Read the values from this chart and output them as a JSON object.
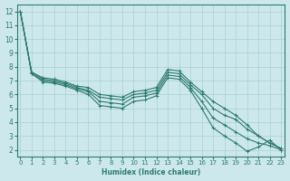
{
  "title": "",
  "xlabel": "Humidex (Indice chaleur)",
  "ylabel": "",
  "bg_color": "#cce8ed",
  "grid_color": "#b0d4d8",
  "line_color": "#2e7b6e",
  "xlim": [
    -0.3,
    23.3
  ],
  "ylim": [
    1.5,
    12.5
  ],
  "xticks": [
    0,
    1,
    2,
    3,
    4,
    5,
    6,
    7,
    8,
    9,
    10,
    11,
    12,
    13,
    14,
    15,
    16,
    17,
    18,
    19,
    20,
    21,
    22,
    23
  ],
  "yticks": [
    2,
    3,
    4,
    5,
    6,
    7,
    8,
    9,
    10,
    11,
    12
  ],
  "lines": [
    {
      "x": [
        0,
        1,
        2,
        3,
        4,
        5,
        6,
        7,
        8,
        9,
        10,
        11,
        12,
        13,
        14,
        15,
        16,
        17,
        18,
        19,
        20,
        21,
        22,
        23
      ],
      "y": [
        12.0,
        7.6,
        7.2,
        7.1,
        6.9,
        6.6,
        6.5,
        6.0,
        5.9,
        5.8,
        6.2,
        6.3,
        6.5,
        7.8,
        7.7,
        6.9,
        6.2,
        5.5,
        5.0,
        4.5,
        3.8,
        3.0,
        2.5,
        2.1
      ]
    },
    {
      "x": [
        0,
        1,
        2,
        3,
        4,
        5,
        6,
        7,
        8,
        9,
        10,
        11,
        12,
        13,
        14,
        15,
        16,
        17,
        18,
        19,
        20,
        21,
        22,
        23
      ],
      "y": [
        12.0,
        7.6,
        7.1,
        7.0,
        6.8,
        6.5,
        6.3,
        5.8,
        5.7,
        5.6,
        6.0,
        6.1,
        6.3,
        7.6,
        7.5,
        6.7,
        6.0,
        5.0,
        4.5,
        4.2,
        3.5,
        3.0,
        2.5,
        2.1
      ]
    },
    {
      "x": [
        0,
        1,
        2,
        3,
        4,
        5,
        6,
        7,
        8,
        9,
        10,
        11,
        12,
        13,
        14,
        15,
        16,
        17,
        18,
        19,
        20,
        21,
        22,
        23
      ],
      "y": [
        12.0,
        7.5,
        7.0,
        6.9,
        6.7,
        6.4,
        6.2,
        5.5,
        5.4,
        5.3,
        5.8,
        5.9,
        6.1,
        7.4,
        7.3,
        6.5,
        5.5,
        4.3,
        3.8,
        3.3,
        2.8,
        2.5,
        2.3,
        2.0
      ]
    },
    {
      "x": [
        0,
        1,
        2,
        3,
        4,
        5,
        6,
        7,
        8,
        9,
        10,
        11,
        12,
        13,
        14,
        15,
        16,
        17,
        18,
        19,
        20,
        21,
        22,
        23
      ],
      "y": [
        12.0,
        7.5,
        6.9,
        6.8,
        6.6,
        6.3,
        6.0,
        5.2,
        5.1,
        5.0,
        5.5,
        5.6,
        5.9,
        7.2,
        7.1,
        6.3,
        5.0,
        3.6,
        3.0,
        2.5,
        1.9,
        2.2,
        2.7,
        2.0
      ]
    }
  ]
}
